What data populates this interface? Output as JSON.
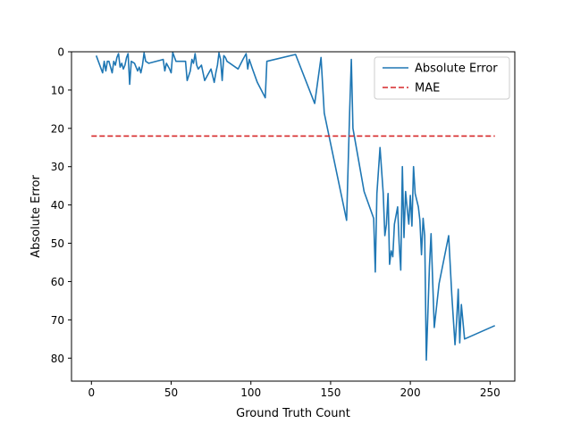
{
  "chart_data": {
    "type": "line",
    "title": "",
    "xlabel": "Ground Truth Count",
    "ylabel": "Absolute Error",
    "xlim": [
      -12.5,
      265.5
    ],
    "ylim": [
      86,
      0
    ],
    "y_inverted": true,
    "xticks": [
      0,
      50,
      100,
      150,
      200,
      250
    ],
    "yticks": [
      0,
      10,
      20,
      30,
      40,
      50,
      60,
      70,
      80
    ],
    "grid": false,
    "legend_position": "top-right",
    "series": [
      {
        "name": "Absolute Error",
        "color": "#1f77b4",
        "style": "solid",
        "x": [
          3,
          7,
          8,
          9,
          10,
          11,
          12,
          13,
          14,
          15,
          16,
          17,
          18,
          19,
          20,
          21,
          22,
          23,
          24,
          25,
          27,
          29,
          30,
          31,
          32,
          33,
          34,
          36,
          45,
          46,
          47,
          49,
          50,
          51,
          53,
          59,
          60,
          62,
          63,
          64,
          65,
          66,
          67,
          69,
          71,
          73,
          75,
          77,
          78,
          79,
          80,
          81,
          82,
          83,
          84,
          85,
          92,
          95,
          97,
          98,
          99,
          101,
          104,
          109,
          110,
          128,
          140,
          144,
          146,
          160,
          162,
          163,
          164,
          171,
          177,
          178,
          179,
          181,
          183,
          184,
          185,
          186,
          187,
          188,
          189,
          190,
          192,
          193,
          194,
          195,
          196,
          197,
          198,
          199,
          200,
          201,
          202,
          203,
          205,
          206,
          207,
          208,
          209,
          210,
          212,
          213,
          215,
          218,
          224,
          226,
          228,
          229,
          230,
          231,
          232,
          234,
          253
        ],
        "y": [
          1,
          5.5,
          2.5,
          5,
          2.5,
          2.5,
          4,
          5.5,
          2.5,
          3.5,
          1.5,
          0.5,
          4,
          3,
          4.5,
          3.5,
          1.5,
          0.5,
          8.5,
          2.5,
          3,
          5,
          4,
          5.5,
          3.5,
          0.3,
          2.5,
          3,
          2,
          5,
          3,
          4.5,
          5.5,
          0.2,
          2.5,
          2.5,
          7.5,
          5,
          2,
          3,
          0.5,
          3.5,
          4.5,
          3.5,
          7.5,
          6,
          4.5,
          8,
          5.5,
          3.5,
          0.3,
          2,
          7.5,
          1,
          1.5,
          2.5,
          4.5,
          2,
          0.5,
          4.5,
          2,
          4.5,
          8,
          12,
          2.5,
          0.7,
          13.5,
          1.5,
          16,
          44,
          15,
          2,
          20,
          36.5,
          43.5,
          57.5,
          37,
          25,
          37,
          48,
          45,
          37,
          55.5,
          52,
          53.5,
          45,
          40.5,
          50,
          57,
          30,
          48.5,
          36.5,
          41,
          45,
          37.5,
          45.5,
          30,
          37,
          40.5,
          44,
          53,
          43.5,
          48,
          80.5,
          56,
          47.5,
          72,
          60.5,
          48,
          63.5,
          76.5,
          70.5,
          62,
          76,
          66,
          75,
          71.5
        ]
      },
      {
        "name": "MAE",
        "color": "#d62728",
        "style": "dashed",
        "x": [
          0,
          253
        ],
        "y": [
          22,
          22
        ]
      }
    ]
  }
}
